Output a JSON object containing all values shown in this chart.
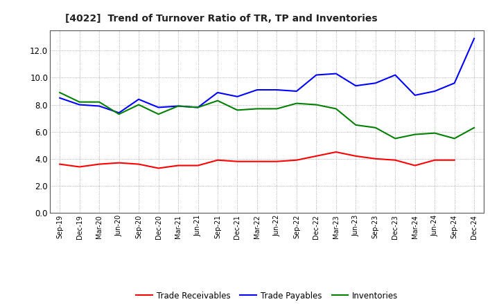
{
  "title": "[4022]  Trend of Turnover Ratio of TR, TP and Inventories",
  "x_labels": [
    "Sep-19",
    "Dec-19",
    "Mar-20",
    "Jun-20",
    "Sep-20",
    "Dec-20",
    "Mar-21",
    "Jun-21",
    "Sep-21",
    "Dec-21",
    "Mar-22",
    "Jun-22",
    "Sep-22",
    "Dec-22",
    "Mar-23",
    "Jun-23",
    "Sep-23",
    "Dec-23",
    "Mar-24",
    "Jun-24",
    "Sep-24",
    "Dec-24"
  ],
  "trade_receivables": [
    3.6,
    3.4,
    3.6,
    3.7,
    3.6,
    3.3,
    3.5,
    3.5,
    3.9,
    3.8,
    3.8,
    3.8,
    3.9,
    4.2,
    4.5,
    4.2,
    4.0,
    3.9,
    3.5,
    3.9,
    3.9,
    null
  ],
  "trade_payables": [
    8.5,
    8.0,
    7.9,
    7.4,
    8.4,
    7.8,
    7.9,
    7.8,
    8.9,
    8.6,
    9.1,
    9.1,
    9.0,
    10.2,
    10.3,
    9.4,
    9.6,
    10.2,
    8.7,
    9.0,
    9.6,
    12.9
  ],
  "inventories": [
    8.9,
    8.2,
    8.2,
    7.3,
    8.0,
    7.3,
    7.9,
    7.8,
    8.3,
    7.6,
    7.7,
    7.7,
    8.1,
    8.0,
    7.7,
    6.5,
    6.3,
    5.5,
    5.8,
    5.9,
    5.5,
    6.3
  ],
  "tr_color": "#ff0000",
  "tp_color": "#0000ff",
  "inv_color": "#008000",
  "ylim": [
    0,
    13.5
  ],
  "yticks": [
    0.0,
    2.0,
    4.0,
    6.0,
    8.0,
    10.0,
    12.0
  ],
  "bg_color": "#ffffff",
  "grid_color": "#999999",
  "legend_labels": [
    "Trade Receivables",
    "Trade Payables",
    "Inventories"
  ]
}
